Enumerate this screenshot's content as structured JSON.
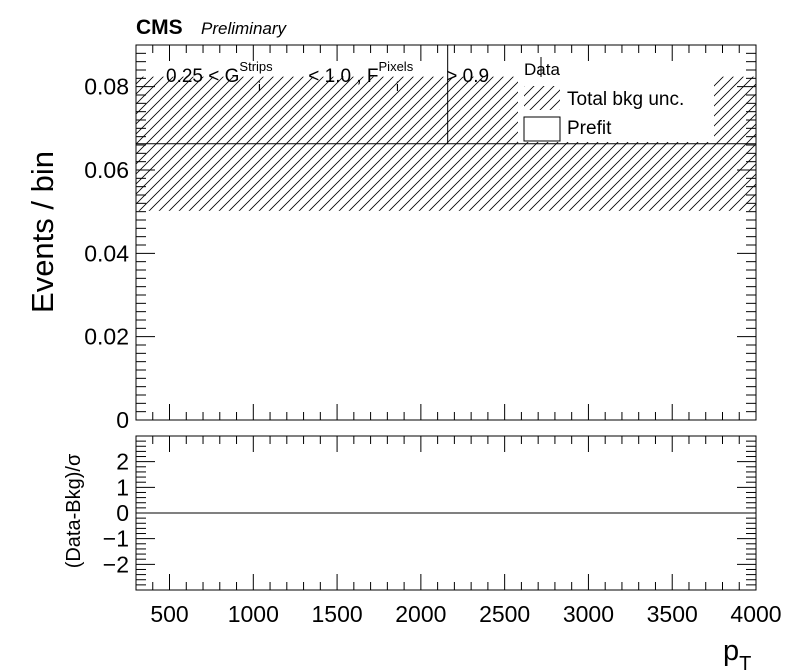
{
  "chart_data": [
    {
      "type": "bar",
      "panel": "main",
      "header": {
        "experiment": "CMS",
        "status": "Preliminary"
      },
      "region_label": {
        "lo": "0.25 < G",
        "g_sup": "Strips",
        "g_sub": "i",
        "mid": " < 1.0 , F",
        "f_sup": "Pixels",
        "f_sub": "i",
        "hi": " > 0.9"
      },
      "xlabel": {
        "main": "p",
        "sub": "T"
      },
      "ylabel": "Events / bin",
      "xlim": [
        300,
        4000
      ],
      "ylim": [
        0,
        0.09
      ],
      "x_ticks": [
        500,
        1000,
        1500,
        2000,
        2500,
        3000,
        3500,
        4000
      ],
      "y_ticks": [
        0,
        0.02,
        0.04,
        0.06,
        0.08
      ],
      "y_tick_labels": [
        "0",
        "0.02",
        "0.04",
        "0.06",
        "0.08"
      ],
      "grid": false,
      "legend": {
        "placement": "top-right",
        "entries": [
          "Data",
          "Total bkg unc.",
          "Prefit"
        ]
      },
      "series": [
        {
          "name": "Prefit",
          "bins": [
            {
              "x_low": 300,
              "x_high": 4000,
              "value": 0.0663
            }
          ]
        },
        {
          "name": "Total bkg unc.",
          "bins": [
            {
              "x_low": 300,
              "x_high": 4000,
              "low": 0.0502,
              "high": 0.0824
            }
          ]
        },
        {
          "name": "Data",
          "points": [
            {
              "x": 2160,
              "y": 0.0824
            }
          ]
        }
      ]
    },
    {
      "type": "line",
      "panel": "ratio",
      "ylabel": "(Data-Bkg)/σ",
      "xlim": [
        300,
        4000
      ],
      "ylim": [
        -3,
        3
      ],
      "y_ticks": [
        -2,
        -1,
        0,
        1,
        2
      ],
      "y_tick_labels": [
        "−2",
        "−1",
        "0",
        "1",
        "2"
      ],
      "reference_line": 0
    }
  ]
}
